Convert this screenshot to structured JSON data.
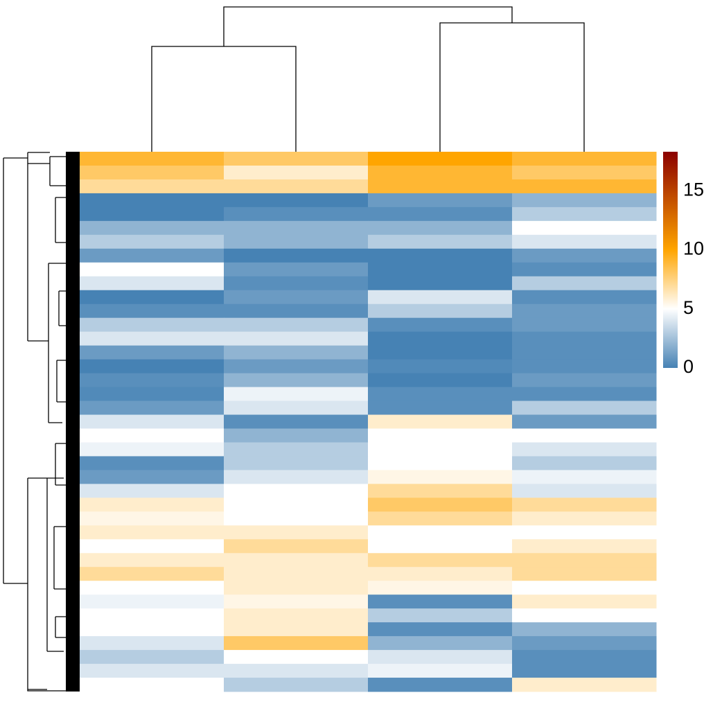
{
  "chart_data": {
    "type": "heatmap",
    "values": [
      [
        9,
        8,
        10,
        9
      ],
      [
        8,
        6,
        9,
        8
      ],
      [
        7,
        7,
        9,
        9
      ],
      [
        0,
        0,
        1,
        2
      ],
      [
        0,
        0.5,
        0.5,
        3
      ],
      [
        2,
        2,
        2,
        5
      ],
      [
        3,
        2,
        3,
        4
      ],
      [
        1,
        0,
        0,
        1
      ],
      [
        5,
        1,
        0,
        0.5
      ],
      [
        4,
        0.5,
        0,
        3
      ],
      [
        0,
        1,
        4,
        0.5
      ],
      [
        0.5,
        0.5,
        3,
        1
      ],
      [
        3,
        3,
        0.5,
        1
      ],
      [
        4,
        4,
        0,
        0.5
      ],
      [
        1,
        2,
        0,
        0.5
      ],
      [
        0,
        1,
        0.3,
        0.5
      ],
      [
        0.5,
        2,
        0,
        1
      ],
      [
        0.3,
        4.5,
        0.5,
        0.5
      ],
      [
        1,
        4,
        0.5,
        3
      ],
      [
        4,
        0.5,
        6,
        1
      ],
      [
        5,
        2,
        5,
        5
      ],
      [
        4.5,
        3,
        5,
        4
      ],
      [
        0.5,
        3,
        5,
        3
      ],
      [
        1,
        4,
        5.5,
        4.5
      ],
      [
        4,
        5,
        7,
        4
      ],
      [
        6,
        5,
        8,
        7
      ],
      [
        5.5,
        5,
        7,
        6
      ],
      [
        6,
        6,
        5,
        5
      ],
      [
        5,
        7,
        5,
        6
      ],
      [
        6,
        6,
        7,
        7
      ],
      [
        7,
        6,
        6,
        7
      ],
      [
        5,
        6,
        5.5,
        5
      ],
      [
        4.5,
        5.5,
        0.5,
        6
      ],
      [
        5,
        6,
        3,
        5
      ],
      [
        5,
        6,
        0.5,
        2
      ],
      [
        4,
        8,
        2,
        1
      ],
      [
        3,
        5,
        4,
        0.5
      ],
      [
        4,
        4,
        4.5,
        0.5
      ],
      [
        5,
        3,
        0.5,
        6
      ]
    ],
    "colorscale": [
      [
        0,
        "#4682b4"
      ],
      [
        5,
        "#ffffff"
      ],
      [
        10,
        "#ffa500"
      ],
      [
        18.3,
        "#8b0000"
      ]
    ],
    "clim": [
      0,
      18.3
    ],
    "cticks": [
      0,
      5,
      10,
      15
    ],
    "col_dendrogram_heights": [
      152,
      186,
      209
    ]
  }
}
